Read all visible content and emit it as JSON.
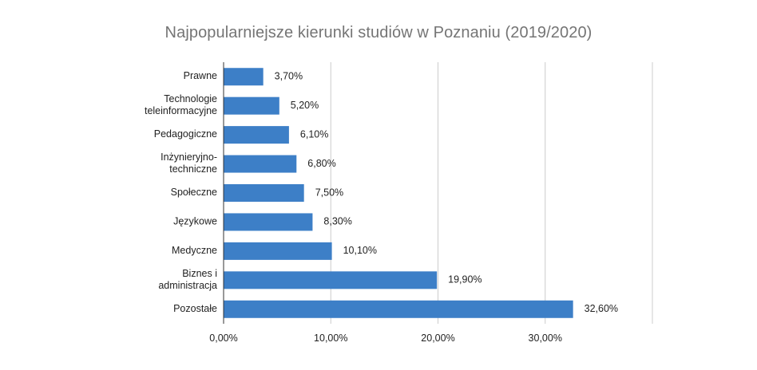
{
  "chart_data": {
    "type": "bar",
    "orientation": "horizontal",
    "title": "Najpopularniejsze kierunki studiów w Poznaniu (2019/2020)",
    "xlabel": "",
    "ylabel": "",
    "categories": [
      "Prawne",
      "Technologie teleinformacyjne",
      "Pedagogiczne",
      "Inżynieryjno-techniczne",
      "Społeczne",
      "Językowe",
      "Medyczne",
      "Biznes i administracja",
      "Pozostałe"
    ],
    "category_lines": [
      [
        "Prawne"
      ],
      [
        "Technologie",
        "teleinformacyjne"
      ],
      [
        "Pedagogiczne"
      ],
      [
        "Inżynieryjno-",
        "techniczne"
      ],
      [
        "Społeczne"
      ],
      [
        "Językowe"
      ],
      [
        "Medyczne"
      ],
      [
        "Biznes i",
        "administracja"
      ],
      [
        "Pozostałe"
      ]
    ],
    "values": [
      3.7,
      5.2,
      6.1,
      6.8,
      7.5,
      8.3,
      10.1,
      19.9,
      32.6
    ],
    "value_labels": [
      "3,70%",
      "5,20%",
      "6,10%",
      "6,80%",
      "7,50%",
      "8,30%",
      "10,10%",
      "19,90%",
      "32,60%"
    ],
    "xlim": [
      0,
      40
    ],
    "xticks": [
      0,
      10,
      20,
      30
    ],
    "xtick_labels": [
      "0,00%",
      "10,00%",
      "20,00%",
      "30,00%"
    ],
    "grid": true,
    "legend": "none",
    "colors": {
      "bar": "#3d7fc7",
      "grid": "#cccccc",
      "axis": "#333333",
      "title": "#757575",
      "text": "#222222"
    }
  }
}
